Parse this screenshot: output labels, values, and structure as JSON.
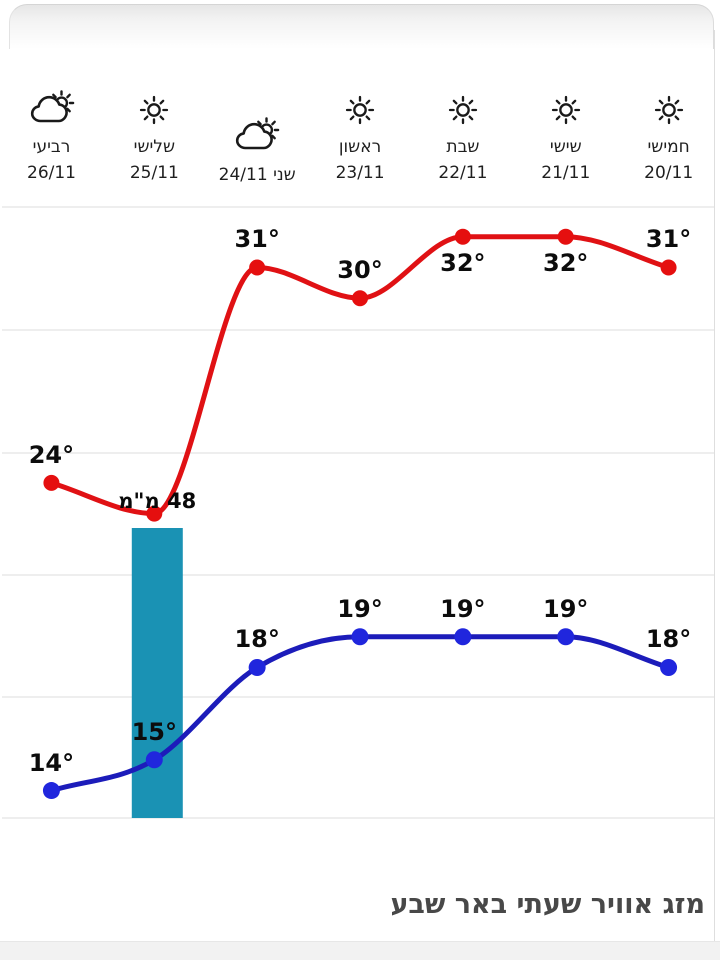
{
  "title": "מזג אוויר שעתי באר שבע",
  "days": [
    {
      "name": "חמישי",
      "date": "20/11",
      "icon": "sunny"
    },
    {
      "name": "שישי",
      "date": "21/11",
      "icon": "sunny"
    },
    {
      "name": "שבת",
      "date": "22/11",
      "icon": "sunny"
    },
    {
      "name": "ראשון",
      "date": "23/11",
      "icon": "sunny"
    },
    {
      "name": "שני",
      "date": "24/11",
      "icon": "partly-cloudy",
      "inline_label": true
    },
    {
      "name": "שלישי",
      "date": "25/11",
      "icon": "sunny"
    },
    {
      "name": "רביעי",
      "date": "26/11",
      "icon": "partly-cloudy"
    }
  ],
  "chart_data": {
    "type": "line",
    "title": "מזג אוויר שעתי באר שבע",
    "categories": [
      "20/11",
      "21/11",
      "22/11",
      "23/11",
      "24/11",
      "25/11",
      "26/11"
    ],
    "x_order": "right-to-left",
    "grid": true,
    "legend": false,
    "y_axis_visible": false,
    "series": [
      {
        "name": "max-temp",
        "color": "#e01114",
        "point_color": "#e50f0f",
        "values": [
          31,
          32,
          32,
          30,
          31,
          23,
          24
        ],
        "labels": [
          "31°",
          "32°",
          "32°",
          "30°",
          "31°",
          "",
          "24°"
        ],
        "label_pos": [
          "above",
          "below",
          "below",
          "above",
          "above",
          "none",
          "above"
        ]
      },
      {
        "name": "min-temp",
        "color": "#1c1cba",
        "point_color": "#2026dd",
        "values": [
          18,
          19,
          19,
          19,
          18,
          15,
          14
        ],
        "labels": [
          "18°",
          "19°",
          "19°",
          "19°",
          "18°",
          "15°",
          "14°"
        ],
        "label_pos": [
          "above",
          "above",
          "above",
          "above",
          "above",
          "above",
          "above"
        ]
      }
    ],
    "precipitation": {
      "category": "25/11",
      "category_index": 5,
      "label": "48 מ\"מ",
      "value_mm": 48,
      "bar_color": "#1a92b4"
    }
  },
  "colors": {
    "background": "#ffffff",
    "gridline": "#e8e8e8",
    "max_line": "#e01114",
    "min_line": "#1c1cba",
    "precip_bar": "#1a92b4",
    "title_text": "#484848",
    "label_text": "#0c0c0c",
    "footer_band": "#f2f2f2"
  }
}
